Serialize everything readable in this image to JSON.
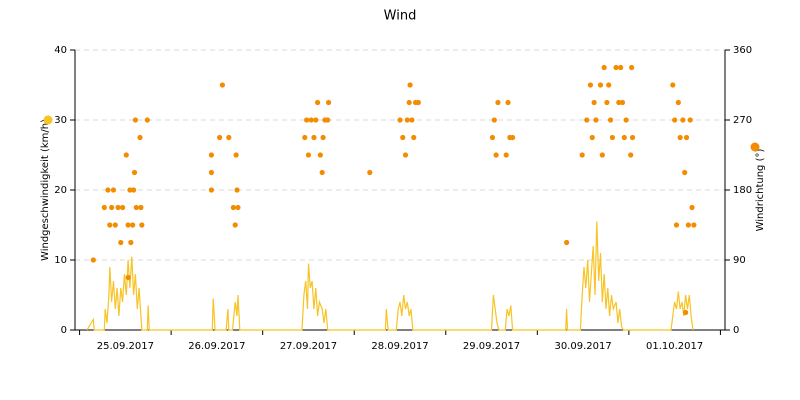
{
  "chart_data": {
    "type": "combo",
    "title": "Wind",
    "xlim": [
      -0.05,
      7.05
    ],
    "xticks": [
      {
        "value": 0.5,
        "label": "25.09.2017"
      },
      {
        "value": 1.5,
        "label": "26.09.2017"
      },
      {
        "value": 2.5,
        "label": "27.09.2017"
      },
      {
        "value": 3.5,
        "label": "28.09.2017"
      },
      {
        "value": 4.5,
        "label": "29.09.2017"
      },
      {
        "value": 5.5,
        "label": "30.09.2017"
      },
      {
        "value": 6.5,
        "label": "01.10.2017"
      }
    ],
    "ylim": [
      0,
      40
    ],
    "yticks": [
      0,
      10,
      20,
      30,
      40
    ],
    "y2lim": [
      0,
      360
    ],
    "y2ticks": [
      0,
      90,
      180,
      270,
      360
    ],
    "grid": true,
    "series": [
      {
        "name": "Windgeschwindigkeit (km/h)",
        "type": "line",
        "color": "#f7c325",
        "x": [
          0.08,
          0.15,
          0.16,
          0.27,
          0.28,
          0.3,
          0.32,
          0.33,
          0.35,
          0.37,
          0.39,
          0.41,
          0.43,
          0.45,
          0.47,
          0.49,
          0.51,
          0.53,
          0.55,
          0.57,
          0.59,
          0.61,
          0.63,
          0.65,
          0.67,
          0.68,
          0.74,
          0.75,
          0.76,
          1.45,
          1.46,
          1.48,
          1.6,
          1.62,
          1.63,
          1.67,
          1.7,
          1.72,
          1.73,
          1.75,
          2.43,
          2.45,
          2.47,
          2.49,
          2.5,
          2.52,
          2.54,
          2.56,
          2.58,
          2.6,
          2.62,
          2.65,
          2.67,
          2.69,
          2.71,
          3.34,
          3.35,
          3.37,
          3.46,
          3.48,
          3.5,
          3.52,
          3.54,
          3.56,
          3.58,
          3.6,
          3.62,
          3.64,
          4.5,
          4.52,
          4.54,
          4.56,
          4.58,
          4.65,
          4.67,
          4.69,
          4.71,
          4.73,
          5.31,
          5.32,
          5.33,
          5.47,
          5.49,
          5.51,
          5.53,
          5.55,
          5.57,
          5.59,
          5.61,
          5.63,
          5.65,
          5.67,
          5.69,
          5.71,
          5.73,
          5.75,
          5.77,
          5.79,
          5.81,
          5.83,
          5.86,
          5.88,
          5.9,
          5.92,
          5.94,
          6.46,
          6.48,
          6.5,
          6.52,
          6.54,
          6.56,
          6.58,
          6.6,
          6.62,
          6.64,
          6.66,
          6.68,
          6.7
        ],
        "values": [
          0,
          1.5,
          0,
          0,
          3,
          1,
          5,
          9,
          4,
          7,
          3,
          6,
          2,
          6,
          4,
          8,
          5,
          10,
          6,
          10.5,
          5,
          8,
          3,
          6,
          2,
          0,
          0,
          3.5,
          0,
          0,
          4.5,
          0,
          0,
          3,
          0,
          0,
          4,
          2,
          5,
          0,
          0,
          5,
          7,
          3,
          9.5,
          6,
          7,
          3,
          6,
          2,
          4,
          3,
          1,
          3,
          0,
          0,
          3,
          0,
          0,
          3,
          4,
          2,
          5,
          3,
          4,
          2,
          3,
          0,
          0,
          5,
          3,
          1,
          0,
          0,
          3,
          2,
          3.5,
          0,
          0,
          3,
          0,
          0,
          5,
          9,
          6,
          10,
          4,
          8,
          12,
          5,
          15.5,
          7,
          11,
          4,
          8,
          3,
          6,
          2,
          5,
          3,
          4,
          1,
          3,
          0.5,
          0,
          0,
          2,
          4,
          3,
          5.5,
          3,
          4,
          2,
          5,
          3,
          5,
          2,
          0
        ]
      },
      {
        "name": "Windrichtung (°)",
        "type": "scatter",
        "axis": "y2",
        "color": "#f28c00",
        "x": [
          0.15,
          0.27,
          0.31,
          0.33,
          0.35,
          0.37,
          0.39,
          0.42,
          0.45,
          0.47,
          0.51,
          0.53,
          0.55,
          0.56,
          0.58,
          0.59,
          0.6,
          0.61,
          0.62,
          0.66,
          0.67,
          0.68,
          0.74,
          0.53,
          1.44,
          1.44,
          1.44,
          1.53,
          1.56,
          1.63,
          1.68,
          1.7,
          1.71,
          1.72,
          1.73,
          2.46,
          2.48,
          2.5,
          2.53,
          2.56,
          2.58,
          2.6,
          2.63,
          2.65,
          2.66,
          2.68,
          2.71,
          2.72,
          3.17,
          3.5,
          3.53,
          3.56,
          3.58,
          3.6,
          3.61,
          3.63,
          3.65,
          3.67,
          3.7,
          4.51,
          4.53,
          4.55,
          4.57,
          4.66,
          4.68,
          4.7,
          4.73,
          5.32,
          5.49,
          5.54,
          5.58,
          5.6,
          5.62,
          5.64,
          5.69,
          5.71,
          5.73,
          5.76,
          5.78,
          5.8,
          5.82,
          5.86,
          5.89,
          5.91,
          5.93,
          5.95,
          5.97,
          6.02,
          6.03,
          6.04,
          6.48,
          6.5,
          6.52,
          6.54,
          6.56,
          6.59,
          6.61,
          6.63,
          6.65,
          6.67,
          6.69,
          6.71,
          6.62
        ],
        "values": [
          90,
          157.5,
          180,
          135,
          157.5,
          180,
          135,
          157.5,
          112.5,
          157.5,
          225,
          135,
          180,
          112.5,
          135,
          180,
          202.5,
          270,
          157.5,
          247.5,
          157.5,
          135,
          270,
          67.5,
          180,
          202.5,
          225,
          247.5,
          315,
          247.5,
          157.5,
          135,
          225,
          180,
          157.5,
          247.5,
          270,
          225,
          270,
          247.5,
          270,
          292.5,
          225,
          202.5,
          247.5,
          270,
          270,
          292.5,
          202.5,
          270,
          247.5,
          225,
          270,
          292.5,
          315,
          270,
          247.5,
          292.5,
          292.5,
          247.5,
          270,
          225,
          292.5,
          225,
          292.5,
          247.5,
          247.5,
          112.5,
          225,
          270,
          315,
          247.5,
          292.5,
          270,
          315,
          225,
          337.5,
          292.5,
          315,
          270,
          247.5,
          337.5,
          292.5,
          337.5,
          292.5,
          247.5,
          270,
          225,
          337.5,
          247.5,
          315,
          270,
          135,
          292.5,
          247.5,
          270,
          202.5,
          247.5,
          135,
          270,
          157.5,
          135,
          22.5
        ]
      }
    ]
  }
}
